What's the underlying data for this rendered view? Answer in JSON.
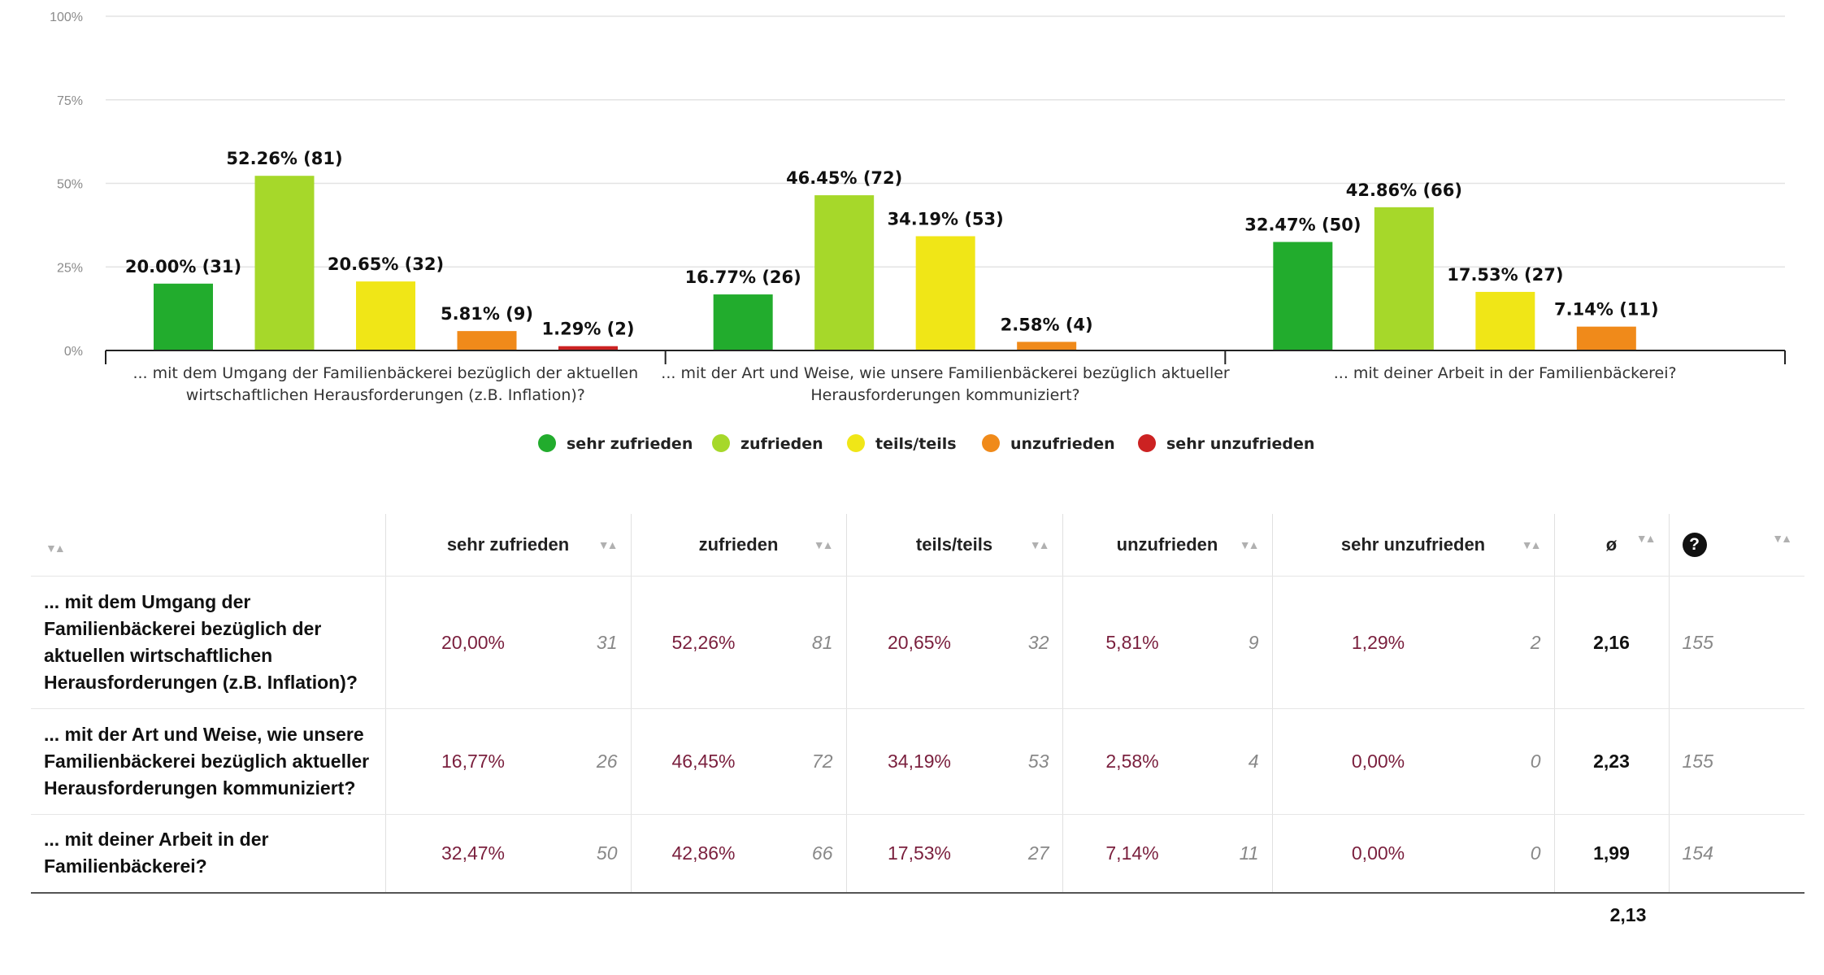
{
  "chart_data": {
    "type": "bar",
    "categories": [
      "... mit dem Umgang der Familienbäckerei bezüglich der aktuellen wirtschaftlichen Herausforderungen (z.B. Inflation)?",
      "... mit der Art und Weise, wie unsere Familienbäckerei bezüglich aktueller Herausforderungen kommuniziert?",
      "... mit deiner Arbeit in der Familienbäckerei?"
    ],
    "category_lines": [
      [
        "... mit dem Umgang der Familienbäckerei bezüglich der aktuellen",
        "wirtschaftlichen Herausforderungen (z.B. Inflation)?"
      ],
      [
        "... mit der Art und Weise, wie unsere Familienbäckerei bezüglich aktueller",
        "Herausforderungen kommuniziert?"
      ],
      [
        "... mit deiner Arbeit in der Familienbäckerei?"
      ]
    ],
    "series": [
      {
        "name": "sehr zufrieden",
        "color": "#22ac2d",
        "values": [
          20.0,
          16.77,
          32.47
        ],
        "counts": [
          31,
          26,
          50
        ],
        "labels": [
          "20.00% (31)",
          "16.77% (26)",
          "32.47% (50)"
        ]
      },
      {
        "name": "zufrieden",
        "color": "#a6d82a",
        "values": [
          52.26,
          46.45,
          42.86
        ],
        "counts": [
          81,
          72,
          66
        ],
        "labels": [
          "52.26% (81)",
          "46.45% (72)",
          "42.86% (66)"
        ]
      },
      {
        "name": "teils/teils",
        "color": "#f0e617",
        "values": [
          20.65,
          34.19,
          17.53
        ],
        "counts": [
          32,
          53,
          27
        ],
        "labels": [
          "20.65% (32)",
          "34.19% (53)",
          "17.53% (27)"
        ]
      },
      {
        "name": "unzufrieden",
        "color": "#f08a1a",
        "values": [
          5.81,
          2.58,
          7.14
        ],
        "counts": [
          9,
          4,
          11
        ],
        "labels": [
          "5.81% (9)",
          "2.58% (4)",
          "7.14% (11)"
        ]
      },
      {
        "name": "sehr unzufrieden",
        "color": "#cc2222",
        "values": [
          1.29,
          0.0,
          0.0
        ],
        "counts": [
          2,
          0,
          0
        ],
        "labels": [
          "1.29% (2)",
          "",
          ""
        ]
      }
    ],
    "yticks": [
      "0%",
      "25%",
      "50%",
      "75%",
      "100%"
    ],
    "ylim": [
      0,
      100
    ],
    "grid": true,
    "legend": "bottom"
  },
  "table": {
    "headers": [
      "sehr zufrieden",
      "zufrieden",
      "teils/teils",
      "unzufrieden",
      "sehr unzufrieden",
      "ø"
    ],
    "help_icon": "question-icon",
    "rows": [
      {
        "question": "... mit dem Umgang der Familienbäckerei bezüglich der aktuellen wirtschaftlichen Herausforderungen (z.B. Inflation)?",
        "cells": [
          {
            "pct": "20,00%",
            "n": "31"
          },
          {
            "pct": "52,26%",
            "n": "81"
          },
          {
            "pct": "20,65%",
            "n": "32"
          },
          {
            "pct": "5,81%",
            "n": "9"
          },
          {
            "pct": "1,29%",
            "n": "2"
          }
        ],
        "avg": "2,16",
        "total": "155"
      },
      {
        "question": "... mit der Art und Weise, wie unsere Familienbäckerei bezüglich aktueller Herausforderungen kommuniziert?",
        "cells": [
          {
            "pct": "16,77%",
            "n": "26"
          },
          {
            "pct": "46,45%",
            "n": "72"
          },
          {
            "pct": "34,19%",
            "n": "53"
          },
          {
            "pct": "2,58%",
            "n": "4"
          },
          {
            "pct": "0,00%",
            "n": "0"
          }
        ],
        "avg": "2,23",
        "total": "155"
      },
      {
        "question": "... mit deiner Arbeit in der Familienbäckerei?",
        "cells": [
          {
            "pct": "32,47%",
            "n": "50"
          },
          {
            "pct": "42,86%",
            "n": "66"
          },
          {
            "pct": "17,53%",
            "n": "27"
          },
          {
            "pct": "7,14%",
            "n": "11"
          },
          {
            "pct": "0,00%",
            "n": "0"
          }
        ],
        "avg": "1,99",
        "total": "154"
      }
    ],
    "overall_avg": "2,13"
  }
}
